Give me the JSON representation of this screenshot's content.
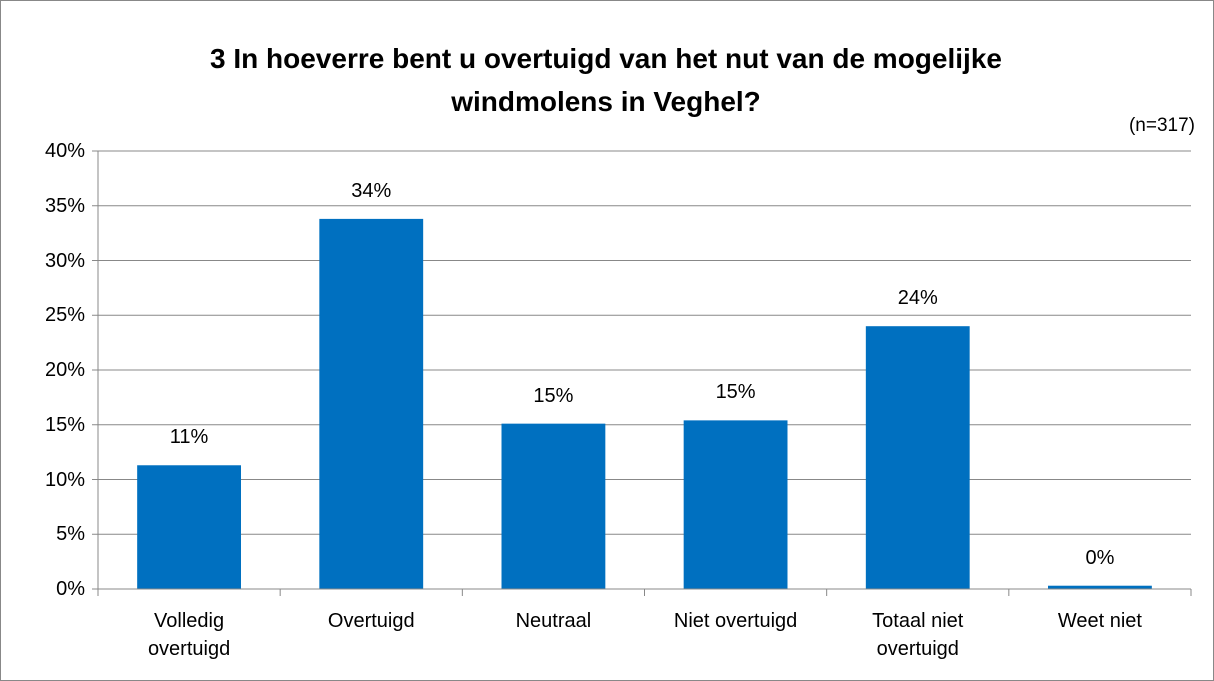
{
  "chart_data": {
    "type": "bar",
    "title": "3 In hoeverre bent u overtuigd van het nut van de mogelijke windmolens in Veghel?",
    "annotation": "(n=317)",
    "categories": [
      "Volledig overtuigd",
      "Overtuigd",
      "Neutraal",
      "Niet overtuigd",
      "Totaal niet overtuigd",
      "Weet niet"
    ],
    "values": [
      11.3,
      33.8,
      15.1,
      15.4,
      24.0,
      0.3
    ],
    "value_labels": [
      "11%",
      "34%",
      "15%",
      "15%",
      "24%",
      "0%"
    ],
    "color": "#0070c0",
    "ylim": [
      0,
      40
    ],
    "yticks": [
      {
        "value": 0,
        "label": "0%"
      },
      {
        "value": 5,
        "label": "5%"
      },
      {
        "value": 10,
        "label": "10%"
      },
      {
        "value": 15,
        "label": "15%"
      },
      {
        "value": 20,
        "label": "20%"
      },
      {
        "value": 25,
        "label": "25%"
      },
      {
        "value": 30,
        "label": "30%"
      },
      {
        "value": 35,
        "label": "35%"
      },
      {
        "value": 40,
        "label": "40%"
      }
    ],
    "grid": true
  }
}
